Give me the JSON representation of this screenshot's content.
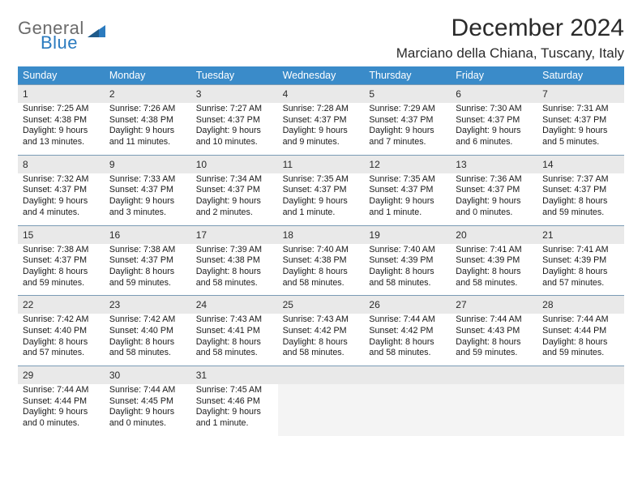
{
  "logo": {
    "line1": "General",
    "line2": "Blue"
  },
  "title": "December 2024",
  "location": "Marciano della Chiana, Tuscany, Italy",
  "colors": {
    "header_bg": "#3a8bc9",
    "header_fg": "#ffffff",
    "daynum_bg": "#e9e9e9",
    "rule": "#7a9bb5",
    "text": "#1a1a1a",
    "logo_gray": "#6b6b6b",
    "logo_blue": "#2b7bbf"
  },
  "dow": [
    "Sunday",
    "Monday",
    "Tuesday",
    "Wednesday",
    "Thursday",
    "Friday",
    "Saturday"
  ],
  "weeks": [
    [
      {
        "n": "1",
        "sr": "Sunrise: 7:25 AM",
        "ss": "Sunset: 4:38 PM",
        "d1": "Daylight: 9 hours",
        "d2": "and 13 minutes."
      },
      {
        "n": "2",
        "sr": "Sunrise: 7:26 AM",
        "ss": "Sunset: 4:38 PM",
        "d1": "Daylight: 9 hours",
        "d2": "and 11 minutes."
      },
      {
        "n": "3",
        "sr": "Sunrise: 7:27 AM",
        "ss": "Sunset: 4:37 PM",
        "d1": "Daylight: 9 hours",
        "d2": "and 10 minutes."
      },
      {
        "n": "4",
        "sr": "Sunrise: 7:28 AM",
        "ss": "Sunset: 4:37 PM",
        "d1": "Daylight: 9 hours",
        "d2": "and 9 minutes."
      },
      {
        "n": "5",
        "sr": "Sunrise: 7:29 AM",
        "ss": "Sunset: 4:37 PM",
        "d1": "Daylight: 9 hours",
        "d2": "and 7 minutes."
      },
      {
        "n": "6",
        "sr": "Sunrise: 7:30 AM",
        "ss": "Sunset: 4:37 PM",
        "d1": "Daylight: 9 hours",
        "d2": "and 6 minutes."
      },
      {
        "n": "7",
        "sr": "Sunrise: 7:31 AM",
        "ss": "Sunset: 4:37 PM",
        "d1": "Daylight: 9 hours",
        "d2": "and 5 minutes."
      }
    ],
    [
      {
        "n": "8",
        "sr": "Sunrise: 7:32 AM",
        "ss": "Sunset: 4:37 PM",
        "d1": "Daylight: 9 hours",
        "d2": "and 4 minutes."
      },
      {
        "n": "9",
        "sr": "Sunrise: 7:33 AM",
        "ss": "Sunset: 4:37 PM",
        "d1": "Daylight: 9 hours",
        "d2": "and 3 minutes."
      },
      {
        "n": "10",
        "sr": "Sunrise: 7:34 AM",
        "ss": "Sunset: 4:37 PM",
        "d1": "Daylight: 9 hours",
        "d2": "and 2 minutes."
      },
      {
        "n": "11",
        "sr": "Sunrise: 7:35 AM",
        "ss": "Sunset: 4:37 PM",
        "d1": "Daylight: 9 hours",
        "d2": "and 1 minute."
      },
      {
        "n": "12",
        "sr": "Sunrise: 7:35 AM",
        "ss": "Sunset: 4:37 PM",
        "d1": "Daylight: 9 hours",
        "d2": "and 1 minute."
      },
      {
        "n": "13",
        "sr": "Sunrise: 7:36 AM",
        "ss": "Sunset: 4:37 PM",
        "d1": "Daylight: 9 hours",
        "d2": "and 0 minutes."
      },
      {
        "n": "14",
        "sr": "Sunrise: 7:37 AM",
        "ss": "Sunset: 4:37 PM",
        "d1": "Daylight: 8 hours",
        "d2": "and 59 minutes."
      }
    ],
    [
      {
        "n": "15",
        "sr": "Sunrise: 7:38 AM",
        "ss": "Sunset: 4:37 PM",
        "d1": "Daylight: 8 hours",
        "d2": "and 59 minutes."
      },
      {
        "n": "16",
        "sr": "Sunrise: 7:38 AM",
        "ss": "Sunset: 4:37 PM",
        "d1": "Daylight: 8 hours",
        "d2": "and 59 minutes."
      },
      {
        "n": "17",
        "sr": "Sunrise: 7:39 AM",
        "ss": "Sunset: 4:38 PM",
        "d1": "Daylight: 8 hours",
        "d2": "and 58 minutes."
      },
      {
        "n": "18",
        "sr": "Sunrise: 7:40 AM",
        "ss": "Sunset: 4:38 PM",
        "d1": "Daylight: 8 hours",
        "d2": "and 58 minutes."
      },
      {
        "n": "19",
        "sr": "Sunrise: 7:40 AM",
        "ss": "Sunset: 4:39 PM",
        "d1": "Daylight: 8 hours",
        "d2": "and 58 minutes."
      },
      {
        "n": "20",
        "sr": "Sunrise: 7:41 AM",
        "ss": "Sunset: 4:39 PM",
        "d1": "Daylight: 8 hours",
        "d2": "and 58 minutes."
      },
      {
        "n": "21",
        "sr": "Sunrise: 7:41 AM",
        "ss": "Sunset: 4:39 PM",
        "d1": "Daylight: 8 hours",
        "d2": "and 57 minutes."
      }
    ],
    [
      {
        "n": "22",
        "sr": "Sunrise: 7:42 AM",
        "ss": "Sunset: 4:40 PM",
        "d1": "Daylight: 8 hours",
        "d2": "and 57 minutes."
      },
      {
        "n": "23",
        "sr": "Sunrise: 7:42 AM",
        "ss": "Sunset: 4:40 PM",
        "d1": "Daylight: 8 hours",
        "d2": "and 58 minutes."
      },
      {
        "n": "24",
        "sr": "Sunrise: 7:43 AM",
        "ss": "Sunset: 4:41 PM",
        "d1": "Daylight: 8 hours",
        "d2": "and 58 minutes."
      },
      {
        "n": "25",
        "sr": "Sunrise: 7:43 AM",
        "ss": "Sunset: 4:42 PM",
        "d1": "Daylight: 8 hours",
        "d2": "and 58 minutes."
      },
      {
        "n": "26",
        "sr": "Sunrise: 7:44 AM",
        "ss": "Sunset: 4:42 PM",
        "d1": "Daylight: 8 hours",
        "d2": "and 58 minutes."
      },
      {
        "n": "27",
        "sr": "Sunrise: 7:44 AM",
        "ss": "Sunset: 4:43 PM",
        "d1": "Daylight: 8 hours",
        "d2": "and 59 minutes."
      },
      {
        "n": "28",
        "sr": "Sunrise: 7:44 AM",
        "ss": "Sunset: 4:44 PM",
        "d1": "Daylight: 8 hours",
        "d2": "and 59 minutes."
      }
    ],
    [
      {
        "n": "29",
        "sr": "Sunrise: 7:44 AM",
        "ss": "Sunset: 4:44 PM",
        "d1": "Daylight: 9 hours",
        "d2": "and 0 minutes."
      },
      {
        "n": "30",
        "sr": "Sunrise: 7:44 AM",
        "ss": "Sunset: 4:45 PM",
        "d1": "Daylight: 9 hours",
        "d2": "and 0 minutes."
      },
      {
        "n": "31",
        "sr": "Sunrise: 7:45 AM",
        "ss": "Sunset: 4:46 PM",
        "d1": "Daylight: 9 hours",
        "d2": "and 1 minute."
      },
      null,
      null,
      null,
      null
    ]
  ]
}
